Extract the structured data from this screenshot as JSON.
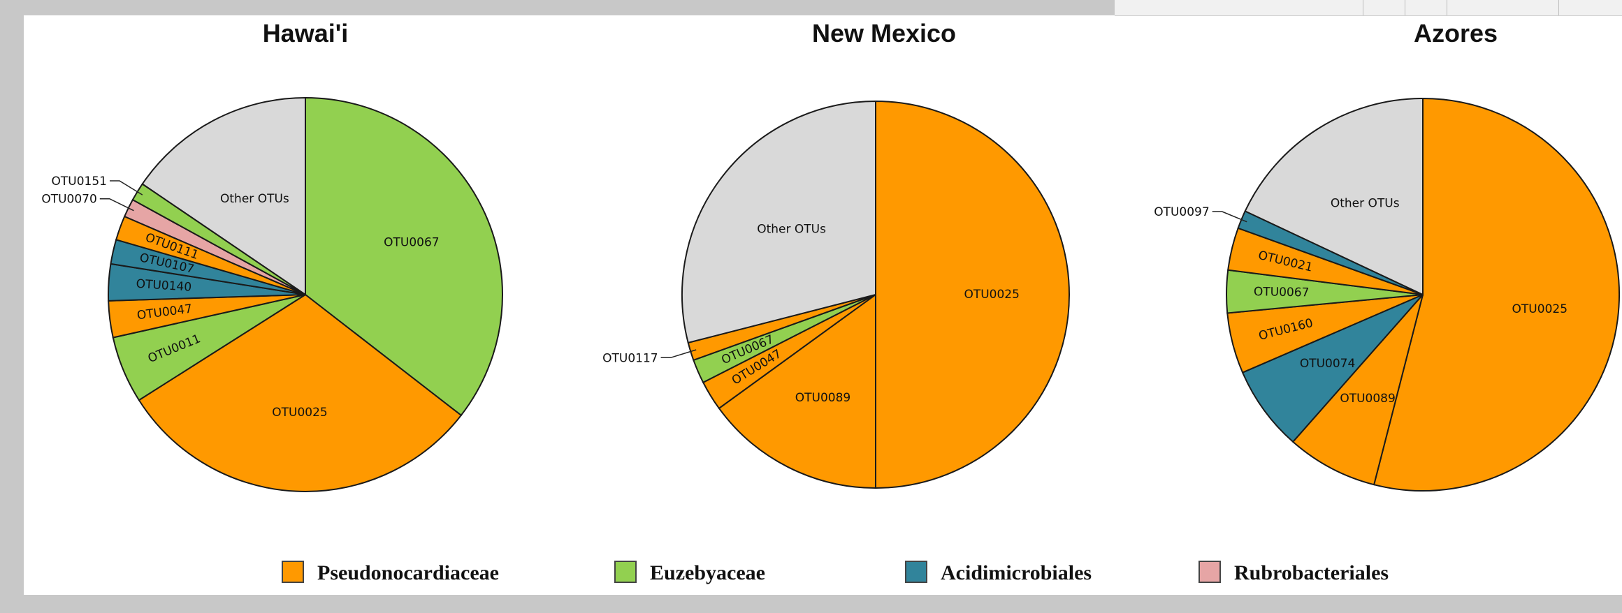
{
  "colors": {
    "Pseudonocardiaceae": "#ff9900",
    "Euzebyaceae": "#92d050",
    "Acidimicrobiales": "#31849b",
    "Rubrobacteriales": "#e6a5a5",
    "Other": "#d9d9d9"
  },
  "legend": [
    {
      "label": "Pseudonocardiaceae",
      "color": "#ff9900"
    },
    {
      "label": "Euzebyaceae",
      "color": "#92d050"
    },
    {
      "label": "Acidimicrobiales",
      "color": "#31849b"
    },
    {
      "label": "Rubrobacteriales",
      "color": "#e6a5a5"
    }
  ],
  "chart_data": [
    {
      "type": "pie",
      "title": "Hawai'i",
      "slices": [
        {
          "label": "OTU0067",
          "value": 35.5,
          "group": "Euzebyaceae"
        },
        {
          "label": "OTU0025",
          "value": 30.5,
          "group": "Pseudonocardiaceae"
        },
        {
          "label": "OTU0011",
          "value": 5.5,
          "group": "Euzebyaceae"
        },
        {
          "label": "OTU0047",
          "value": 3.0,
          "group": "Pseudonocardiaceae"
        },
        {
          "label": "OTU0140",
          "value": 3.0,
          "group": "Acidimicrobiales"
        },
        {
          "label": "OTU0107",
          "value": 2.0,
          "group": "Acidimicrobiales"
        },
        {
          "label": "OTU0111",
          "value": 2.0,
          "group": "Pseudonocardiaceae"
        },
        {
          "label": "OTU0070",
          "value": 1.5,
          "group": "Rubrobacteriales"
        },
        {
          "label": "OTU0151",
          "value": 1.5,
          "group": "Euzebyaceae"
        },
        {
          "label": "Other OTUs",
          "value": 15.5,
          "group": "Other"
        }
      ]
    },
    {
      "type": "pie",
      "title": "New Mexico",
      "slices": [
        {
          "label": "OTU0025",
          "value": 50.0,
          "group": "Pseudonocardiaceae"
        },
        {
          "label": "OTU0089",
          "value": 15.0,
          "group": "Pseudonocardiaceae"
        },
        {
          "label": "OTU0047",
          "value": 2.5,
          "group": "Pseudonocardiaceae"
        },
        {
          "label": "OTU0067",
          "value": 2.0,
          "group": "Euzebyaceae"
        },
        {
          "label": "OTU0117",
          "value": 1.5,
          "group": "Pseudonocardiaceae"
        },
        {
          "label": "Other OTUs",
          "value": 29.0,
          "group": "Other"
        }
      ]
    },
    {
      "type": "pie",
      "title": "Azores",
      "slices": [
        {
          "label": "OTU0025",
          "value": 54.0,
          "group": "Pseudonocardiaceae"
        },
        {
          "label": "OTU0089",
          "value": 7.5,
          "group": "Pseudonocardiaceae"
        },
        {
          "label": "OTU0074",
          "value": 7.0,
          "group": "Acidimicrobiales"
        },
        {
          "label": "OTU0160",
          "value": 5.0,
          "group": "Pseudonocardiaceae"
        },
        {
          "label": "OTU0067",
          "value": 3.5,
          "group": "Euzebyaceae"
        },
        {
          "label": "OTU0021",
          "value": 3.5,
          "group": "Pseudonocardiaceae"
        },
        {
          "label": "OTU0097",
          "value": 1.5,
          "group": "Acidimicrobiales"
        },
        {
          "label": "Other OTUs",
          "value": 18.0,
          "group": "Other"
        }
      ]
    }
  ]
}
